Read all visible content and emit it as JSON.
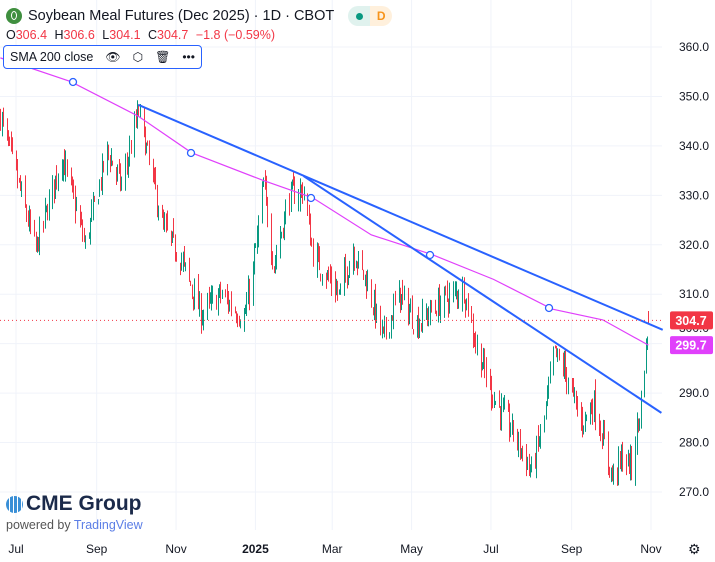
{
  "header": {
    "title": "Soybean Meal Futures (Dec 2025) · 1D · CBOT",
    "status_letter": "D",
    "ohlc": {
      "o_label": "O",
      "o": "306.4",
      "h_label": "H",
      "h": "306.6",
      "l_label": "L",
      "l": "304.1",
      "c_label": "C",
      "c": "304.7",
      "change": "−1.8 (−0.59%)"
    }
  },
  "indicator": {
    "label": "SMA 200 close",
    "icons": [
      "eye-icon",
      "settings-icon",
      "trash-icon",
      "more-icon"
    ]
  },
  "branding": {
    "logo": "CME Group",
    "powered_by": "powered by",
    "tradingview": "TradingView"
  },
  "colors": {
    "up": "#089981",
    "down": "#f23645",
    "sma": "#e040fb",
    "trendline": "#2962ff",
    "last_price": "#f23645"
  },
  "chart_data": {
    "type": "candlestick",
    "title": "Soybean Meal Futures (Dec 2025)",
    "y_ticks": [
      "360.0",
      "350.0",
      "340.0",
      "330.0",
      "320.0",
      "310.0",
      "300.0",
      "290.0",
      "280.0",
      "270.0"
    ],
    "ylim": [
      267,
      365
    ],
    "x_ticks": [
      "Jul",
      "Sep",
      "Nov",
      "2025",
      "Mar",
      "May",
      "Jul",
      "Sep",
      "Nov"
    ],
    "x_tick_dates": [
      "2024-07-01",
      "2024-09-01",
      "2024-11-01",
      "2025-01-01",
      "2025-03-01",
      "2025-05-01",
      "2025-07-01",
      "2025-09-01",
      "2025-11-01"
    ],
    "grid": true,
    "approx_closes": [
      [
        "2024-06-19",
        346
      ],
      [
        "2024-07-16",
        319
      ],
      [
        "2024-08-05",
        338
      ],
      [
        "2024-08-23",
        320
      ],
      [
        "2024-09-09",
        339
      ],
      [
        "2024-09-20",
        332
      ],
      [
        "2024-10-03",
        347
      ],
      [
        "2024-10-21",
        324
      ],
      [
        "2024-11-05",
        317
      ],
      [
        "2024-11-20",
        306
      ],
      [
        "2024-12-05",
        310
      ],
      [
        "2024-12-23",
        305
      ],
      [
        "2024-12-30",
        315
      ],
      [
        "2025-01-07",
        332
      ],
      [
        "2025-01-15",
        316
      ],
      [
        "2025-01-27",
        330
      ],
      [
        "2025-02-07",
        331
      ],
      [
        "2025-02-14",
        318
      ],
      [
        "2025-03-06",
        310
      ],
      [
        "2025-03-17",
        319
      ],
      [
        "2025-03-28",
        312
      ],
      [
        "2025-04-09",
        301
      ],
      [
        "2025-04-21",
        310
      ],
      [
        "2025-05-05",
        304
      ],
      [
        "2025-05-26",
        309
      ],
      [
        "2025-06-10",
        311
      ],
      [
        "2025-06-20",
        299
      ],
      [
        "2025-07-03",
        289
      ],
      [
        "2025-07-18",
        282
      ],
      [
        "2025-08-01",
        274
      ],
      [
        "2025-08-11",
        285
      ],
      [
        "2025-08-18",
        298
      ],
      [
        "2025-08-26",
        295
      ],
      [
        "2025-09-08",
        284
      ],
      [
        "2025-09-18",
        288
      ],
      [
        "2025-10-02",
        273
      ],
      [
        "2025-10-10",
        277
      ],
      [
        "2025-10-17",
        275
      ],
      [
        "2025-10-24",
        288
      ],
      [
        "2025-10-30",
        304.7
      ]
    ],
    "sma_200": [
      [
        "2024-06-19",
        357.8
      ],
      [
        "2024-08-12",
        353
      ],
      [
        "2024-10-03",
        346
      ],
      [
        "2024-11-13",
        338.6
      ],
      [
        "2025-01-07",
        333
      ],
      [
        "2025-02-14",
        329.5
      ],
      [
        "2025-03-31",
        322
      ],
      [
        "2025-05-17",
        318
      ],
      [
        "2025-07-03",
        313
      ],
      [
        "2025-08-17",
        307
      ],
      [
        "2025-09-25",
        304.8
      ],
      [
        "2025-10-30",
        299.7
      ]
    ],
    "trendlines": [
      {
        "start": [
          "2024-10-03",
          348.3
        ],
        "end": [
          "2025-11-10",
          302.8
        ]
      },
      {
        "start": [
          "2025-02-07",
          333.9
        ],
        "end": [
          "2025-11-09",
          286.0
        ]
      }
    ],
    "last_price": "304.7",
    "sma_last": "299.7"
  }
}
